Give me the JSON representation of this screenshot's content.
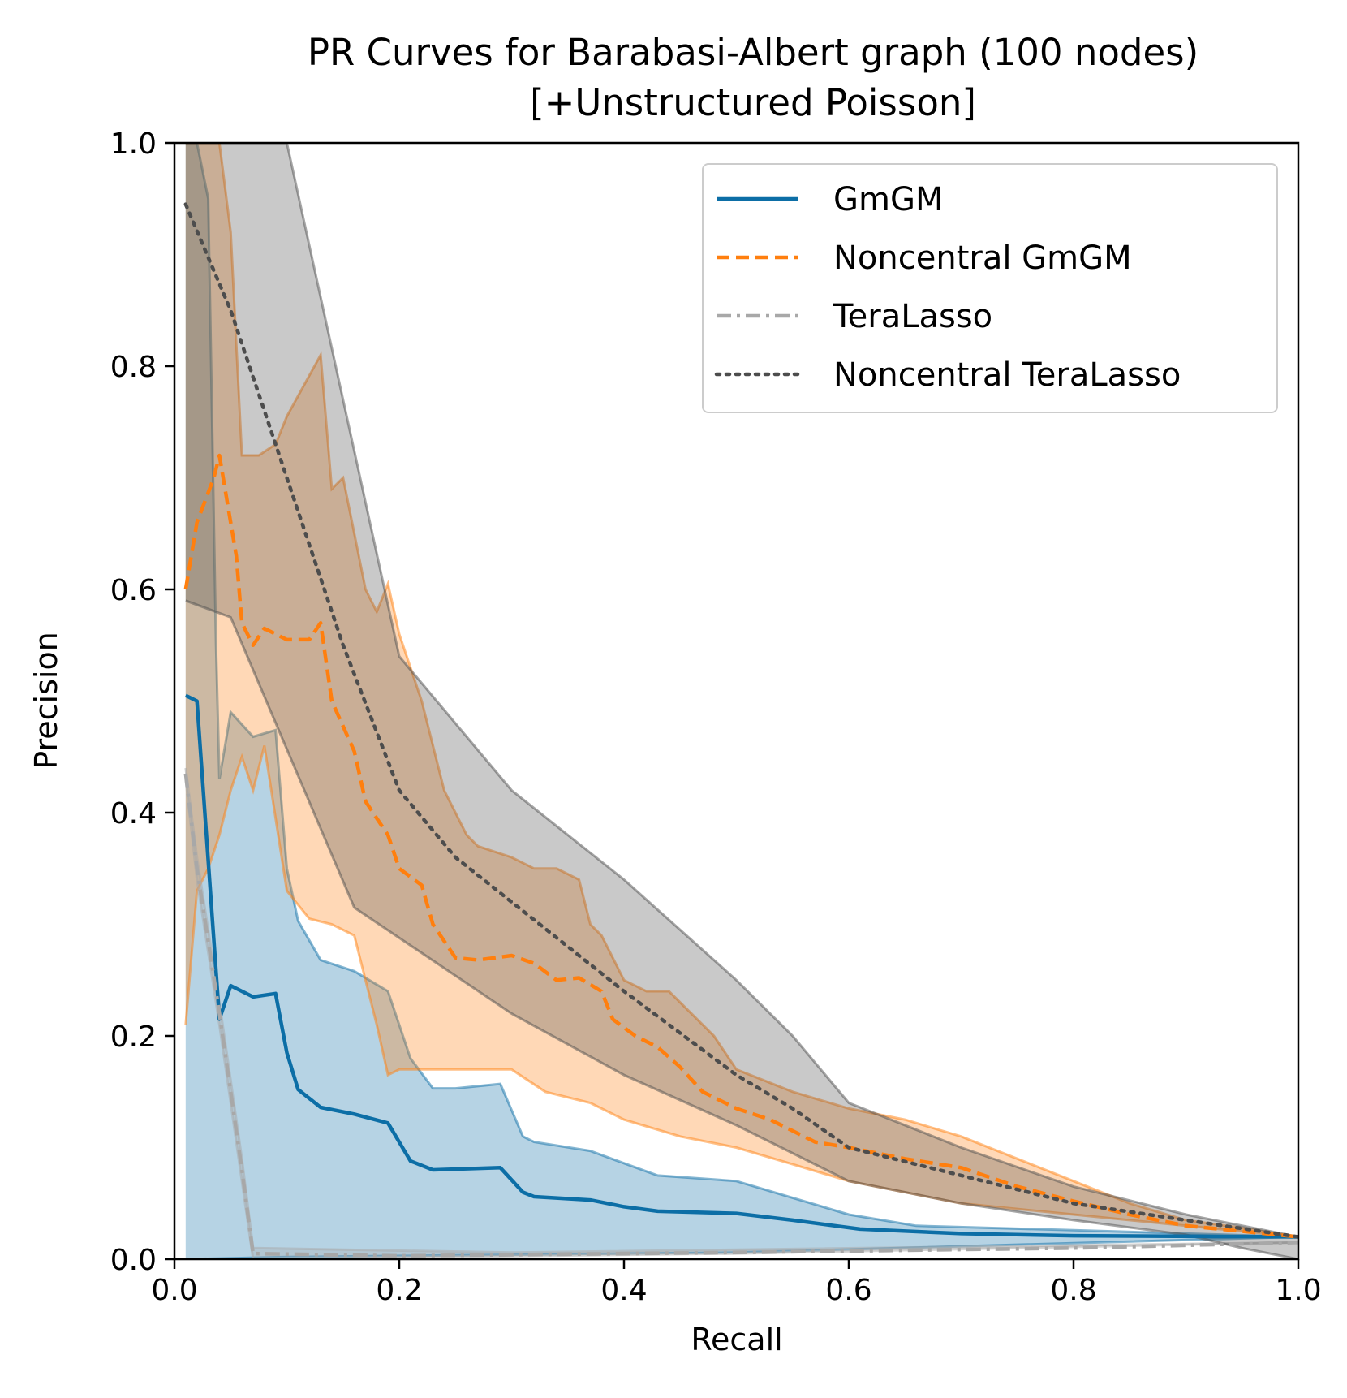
{
  "chart_data": {
    "type": "line",
    "title": "PR Curves for Barabasi-Albert graph (100 nodes)",
    "subtitle": "[+Unstructured Poisson]",
    "xlabel": "Recall",
    "ylabel": "Precision",
    "xlim": [
      0,
      1
    ],
    "ylim": [
      0,
      1
    ],
    "xticks": [
      "0.0",
      "0.2",
      "0.4",
      "0.6",
      "0.8",
      "1.0"
    ],
    "yticks": [
      "0.0",
      "0.2",
      "0.4",
      "0.6",
      "0.8",
      "1.0"
    ],
    "legend_position": "top-right",
    "series": [
      {
        "name": "GmGM",
        "color": "#0c6ea6",
        "style": "solid",
        "mean": [
          [
            0.01,
            0.505
          ],
          [
            0.02,
            0.5
          ],
          [
            0.04,
            0.215
          ],
          [
            0.05,
            0.245
          ],
          [
            0.07,
            0.235
          ],
          [
            0.09,
            0.238
          ],
          [
            0.1,
            0.185
          ],
          [
            0.11,
            0.152
          ],
          [
            0.13,
            0.136
          ],
          [
            0.16,
            0.13
          ],
          [
            0.19,
            0.122
          ],
          [
            0.21,
            0.088
          ],
          [
            0.23,
            0.08
          ],
          [
            0.29,
            0.082
          ],
          [
            0.31,
            0.06
          ],
          [
            0.32,
            0.056
          ],
          [
            0.37,
            0.053
          ],
          [
            0.4,
            0.047
          ],
          [
            0.43,
            0.043
          ],
          [
            0.5,
            0.041
          ],
          [
            0.55,
            0.035
          ],
          [
            0.61,
            0.027
          ],
          [
            0.7,
            0.023
          ],
          [
            0.8,
            0.021
          ],
          [
            1.0,
            0.02
          ]
        ],
        "upper": [
          [
            0.01,
            1.0
          ],
          [
            0.02,
            1.0
          ],
          [
            0.03,
            0.95
          ],
          [
            0.037,
            0.55
          ],
          [
            0.04,
            0.43
          ],
          [
            0.05,
            0.49
          ],
          [
            0.07,
            0.468
          ],
          [
            0.09,
            0.474
          ],
          [
            0.1,
            0.35
          ],
          [
            0.11,
            0.303
          ],
          [
            0.13,
            0.268
          ],
          [
            0.16,
            0.258
          ],
          [
            0.19,
            0.24
          ],
          [
            0.21,
            0.18
          ],
          [
            0.23,
            0.153
          ],
          [
            0.25,
            0.153
          ],
          [
            0.29,
            0.157
          ],
          [
            0.31,
            0.11
          ],
          [
            0.32,
            0.105
          ],
          [
            0.37,
            0.097
          ],
          [
            0.4,
            0.086
          ],
          [
            0.43,
            0.075
          ],
          [
            0.5,
            0.07
          ],
          [
            0.55,
            0.055
          ],
          [
            0.6,
            0.04
          ],
          [
            0.66,
            0.03
          ],
          [
            0.8,
            0.026
          ],
          [
            1.0,
            0.02
          ]
        ],
        "lower": [
          [
            0.01,
            0.0
          ],
          [
            0.1,
            0.002
          ],
          [
            0.5,
            0.006
          ],
          [
            1.0,
            0.02
          ]
        ]
      },
      {
        "name": "Noncentral GmGM",
        "color": "#ff7f0e",
        "style": "dashed",
        "mean": [
          [
            0.01,
            0.6
          ],
          [
            0.02,
            0.66
          ],
          [
            0.035,
            0.7
          ],
          [
            0.04,
            0.72
          ],
          [
            0.055,
            0.63
          ],
          [
            0.06,
            0.57
          ],
          [
            0.07,
            0.55
          ],
          [
            0.08,
            0.565
          ],
          [
            0.1,
            0.555
          ],
          [
            0.12,
            0.555
          ],
          [
            0.13,
            0.57
          ],
          [
            0.14,
            0.5
          ],
          [
            0.16,
            0.455
          ],
          [
            0.17,
            0.41
          ],
          [
            0.19,
            0.38
          ],
          [
            0.2,
            0.35
          ],
          [
            0.22,
            0.335
          ],
          [
            0.23,
            0.3
          ],
          [
            0.25,
            0.27
          ],
          [
            0.27,
            0.268
          ],
          [
            0.3,
            0.272
          ],
          [
            0.32,
            0.265
          ],
          [
            0.34,
            0.25
          ],
          [
            0.36,
            0.252
          ],
          [
            0.38,
            0.24
          ],
          [
            0.39,
            0.215
          ],
          [
            0.41,
            0.2
          ],
          [
            0.43,
            0.19
          ],
          [
            0.45,
            0.172
          ],
          [
            0.47,
            0.15
          ],
          [
            0.5,
            0.135
          ],
          [
            0.53,
            0.125
          ],
          [
            0.57,
            0.105
          ],
          [
            0.6,
            0.1
          ],
          [
            0.65,
            0.09
          ],
          [
            0.7,
            0.082
          ],
          [
            0.75,
            0.065
          ],
          [
            0.8,
            0.052
          ],
          [
            0.85,
            0.04
          ],
          [
            0.9,
            0.03
          ],
          [
            0.95,
            0.025
          ],
          [
            1.0,
            0.02
          ]
        ],
        "upper": [
          [
            0.01,
            1.0
          ],
          [
            0.02,
            1.0
          ],
          [
            0.04,
            1.0
          ],
          [
            0.05,
            0.92
          ],
          [
            0.06,
            0.72
          ],
          [
            0.075,
            0.72
          ],
          [
            0.09,
            0.73
          ],
          [
            0.1,
            0.755
          ],
          [
            0.13,
            0.81
          ],
          [
            0.14,
            0.69
          ],
          [
            0.15,
            0.7
          ],
          [
            0.17,
            0.6
          ],
          [
            0.18,
            0.58
          ],
          [
            0.19,
            0.605
          ],
          [
            0.2,
            0.56
          ],
          [
            0.22,
            0.5
          ],
          [
            0.24,
            0.42
          ],
          [
            0.26,
            0.38
          ],
          [
            0.27,
            0.37
          ],
          [
            0.3,
            0.36
          ],
          [
            0.32,
            0.35
          ],
          [
            0.34,
            0.35
          ],
          [
            0.36,
            0.34
          ],
          [
            0.37,
            0.3
          ],
          [
            0.38,
            0.29
          ],
          [
            0.4,
            0.25
          ],
          [
            0.42,
            0.24
          ],
          [
            0.44,
            0.24
          ],
          [
            0.48,
            0.2
          ],
          [
            0.5,
            0.17
          ],
          [
            0.55,
            0.15
          ],
          [
            0.6,
            0.135
          ],
          [
            0.65,
            0.125
          ],
          [
            0.7,
            0.11
          ],
          [
            0.75,
            0.09
          ],
          [
            0.8,
            0.07
          ],
          [
            0.85,
            0.05
          ],
          [
            0.9,
            0.035
          ],
          [
            0.95,
            0.028
          ],
          [
            1.0,
            0.02
          ]
        ],
        "lower": [
          [
            0.01,
            0.21
          ],
          [
            0.02,
            0.33
          ],
          [
            0.03,
            0.35
          ],
          [
            0.04,
            0.38
          ],
          [
            0.05,
            0.42
          ],
          [
            0.06,
            0.45
          ],
          [
            0.07,
            0.42
          ],
          [
            0.08,
            0.46
          ],
          [
            0.1,
            0.33
          ],
          [
            0.12,
            0.305
          ],
          [
            0.14,
            0.3
          ],
          [
            0.16,
            0.29
          ],
          [
            0.18,
            0.21
          ],
          [
            0.19,
            0.165
          ],
          [
            0.2,
            0.17
          ],
          [
            0.25,
            0.17
          ],
          [
            0.3,
            0.17
          ],
          [
            0.33,
            0.15
          ],
          [
            0.37,
            0.14
          ],
          [
            0.4,
            0.125
          ],
          [
            0.45,
            0.11
          ],
          [
            0.5,
            0.1
          ],
          [
            0.55,
            0.085
          ],
          [
            0.6,
            0.07
          ],
          [
            0.65,
            0.06
          ],
          [
            0.7,
            0.05
          ],
          [
            0.8,
            0.04
          ],
          [
            0.9,
            0.03
          ],
          [
            1.0,
            0.02
          ]
        ]
      },
      {
        "name": "TeraLasso",
        "color": "#a8a8a8",
        "style": "dashdot",
        "mean": [
          [
            0.01,
            0.435
          ],
          [
            0.02,
            0.35
          ],
          [
            0.04,
            0.22
          ],
          [
            0.05,
            0.15
          ],
          [
            0.06,
            0.08
          ],
          [
            0.07,
            0.005
          ],
          [
            0.2,
            0.003
          ],
          [
            0.5,
            0.006
          ],
          [
            0.8,
            0.01
          ],
          [
            1.0,
            0.015
          ]
        ],
        "upper": [
          [
            0.01,
            0.44
          ],
          [
            0.02,
            0.36
          ],
          [
            0.04,
            0.23
          ],
          [
            0.05,
            0.16
          ],
          [
            0.06,
            0.09
          ],
          [
            0.07,
            0.01
          ],
          [
            0.3,
            0.006
          ],
          [
            1.0,
            0.015
          ]
        ],
        "lower": [
          [
            0.01,
            0.43
          ],
          [
            0.02,
            0.34
          ],
          [
            0.04,
            0.21
          ],
          [
            0.05,
            0.14
          ],
          [
            0.06,
            0.07
          ],
          [
            0.07,
            0.0
          ],
          [
            0.5,
            0.005
          ],
          [
            1.0,
            0.015
          ]
        ]
      },
      {
        "name": "Noncentral TeraLasso",
        "color": "#4d4d4d",
        "style": "dotted",
        "mean": [
          [
            0.01,
            0.945
          ],
          [
            0.05,
            0.85
          ],
          [
            0.1,
            0.7
          ],
          [
            0.15,
            0.55
          ],
          [
            0.2,
            0.42
          ],
          [
            0.25,
            0.36
          ],
          [
            0.3,
            0.32
          ],
          [
            0.4,
            0.24
          ],
          [
            0.5,
            0.165
          ],
          [
            0.55,
            0.135
          ],
          [
            0.6,
            0.1
          ],
          [
            0.7,
            0.075
          ],
          [
            0.8,
            0.05
          ],
          [
            0.9,
            0.035
          ],
          [
            1.0,
            0.02
          ]
        ],
        "upper": [
          [
            0.01,
            1.0
          ],
          [
            0.1,
            1.0
          ],
          [
            0.2,
            0.54
          ],
          [
            0.3,
            0.42
          ],
          [
            0.4,
            0.34
          ],
          [
            0.5,
            0.25
          ],
          [
            0.55,
            0.2
          ],
          [
            0.6,
            0.14
          ],
          [
            0.7,
            0.1
          ],
          [
            0.8,
            0.065
          ],
          [
            0.9,
            0.04
          ],
          [
            1.0,
            0.02
          ]
        ],
        "lower": [
          [
            0.01,
            0.59
          ],
          [
            0.05,
            0.575
          ],
          [
            0.16,
            0.315
          ],
          [
            0.3,
            0.22
          ],
          [
            0.4,
            0.165
          ],
          [
            0.5,
            0.12
          ],
          [
            0.6,
            0.07
          ],
          [
            0.7,
            0.05
          ],
          [
            0.8,
            0.035
          ],
          [
            0.9,
            0.022
          ],
          [
            0.95,
            0.01
          ],
          [
            1.0,
            0.0
          ]
        ]
      }
    ]
  }
}
